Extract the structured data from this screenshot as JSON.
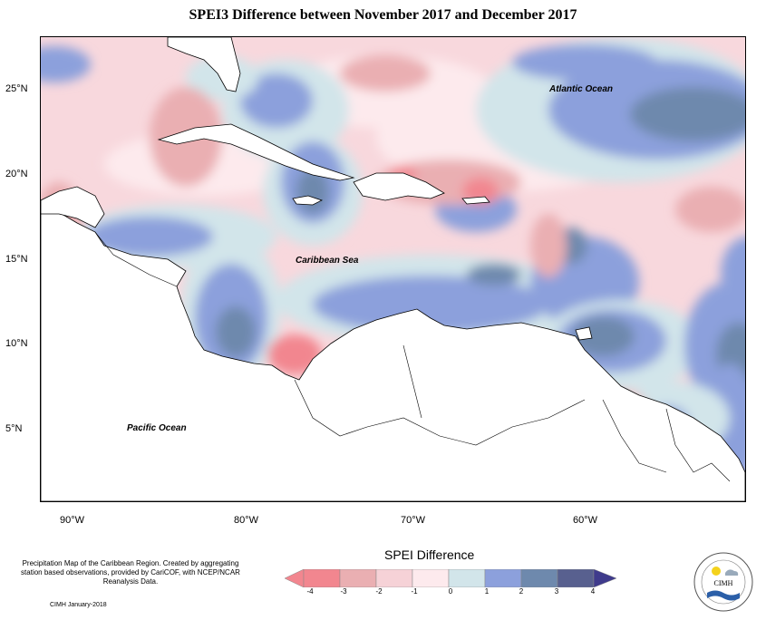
{
  "title": "SPEI3 Difference between November 2017 and December 2017",
  "lat_labels": [
    "25°N",
    "20°N",
    "15°N",
    "10°N",
    "5°N"
  ],
  "lon_labels": [
    "90°W",
    "80°W",
    "70°W",
    "60°W"
  ],
  "ocean_labels": {
    "atlantic": "Atlantic Ocean",
    "caribbean": "Caribbean Sea",
    "pacific": "Pacific Ocean"
  },
  "notes": "Precipitation Map of the Caribbean Region. Created by aggregating station based observations, provided by CariCOF, with NCEP/NCAR Reanalysis Data.",
  "credit": "CIMH January-2018",
  "legend": {
    "title": "SPEI Difference",
    "ticks": [
      "-4",
      "-3",
      "-2",
      "-1",
      "0",
      "1",
      "2",
      "3",
      "4"
    ],
    "colors": [
      "#f2868f",
      "#eaafb2",
      "#f6d2d7",
      "#fdeaed",
      "#d2e5ea",
      "#8ca0dc",
      "#6e89ad",
      "#58608f"
    ]
  },
  "logo_text": "CIMH",
  "colors": {
    "frame": "#000000",
    "land": "#ffffff"
  }
}
